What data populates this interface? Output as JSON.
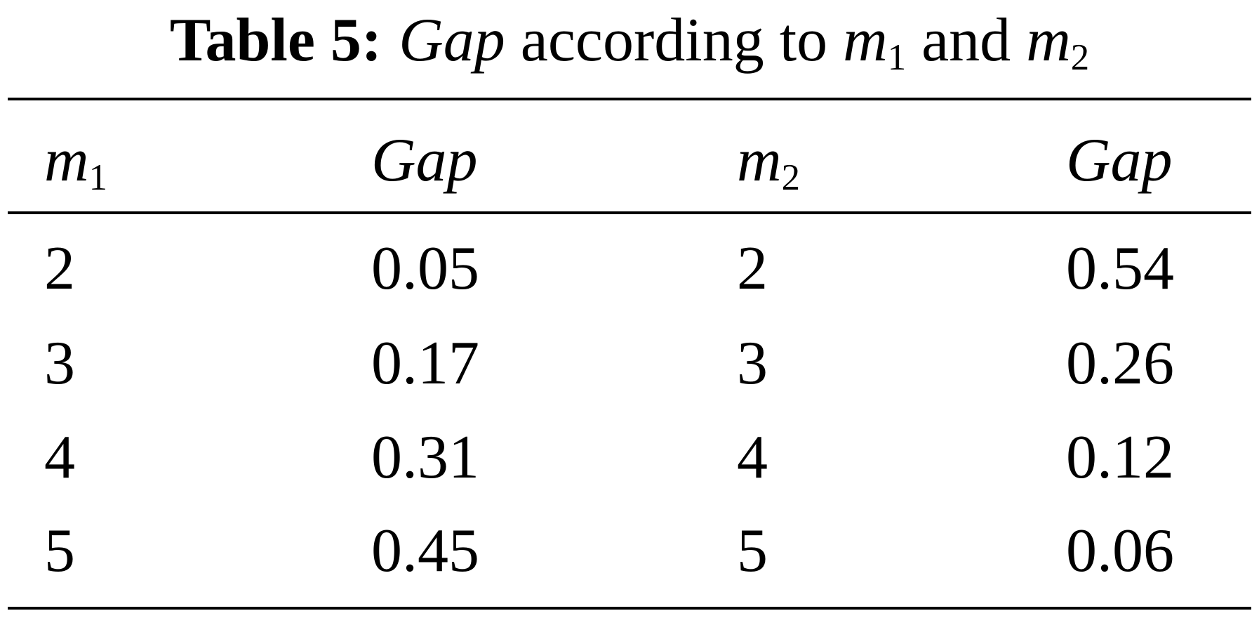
{
  "title": {
    "label": "Table 5:",
    "parts": [
      "Gap",
      "according to",
      "m",
      "1",
      "and",
      "m",
      "2"
    ]
  },
  "table": {
    "header": [
      {
        "var": "m",
        "sub": "1"
      },
      "Gap",
      {
        "var": "m",
        "sub": "2"
      },
      "Gap"
    ],
    "rows": [
      [
        "2",
        "0.05",
        "2",
        "0.54"
      ],
      [
        "3",
        "0.17",
        "3",
        "0.26"
      ],
      [
        "4",
        "0.31",
        "4",
        "0.12"
      ],
      [
        "5",
        "0.45",
        "5",
        "0.06"
      ]
    ]
  }
}
